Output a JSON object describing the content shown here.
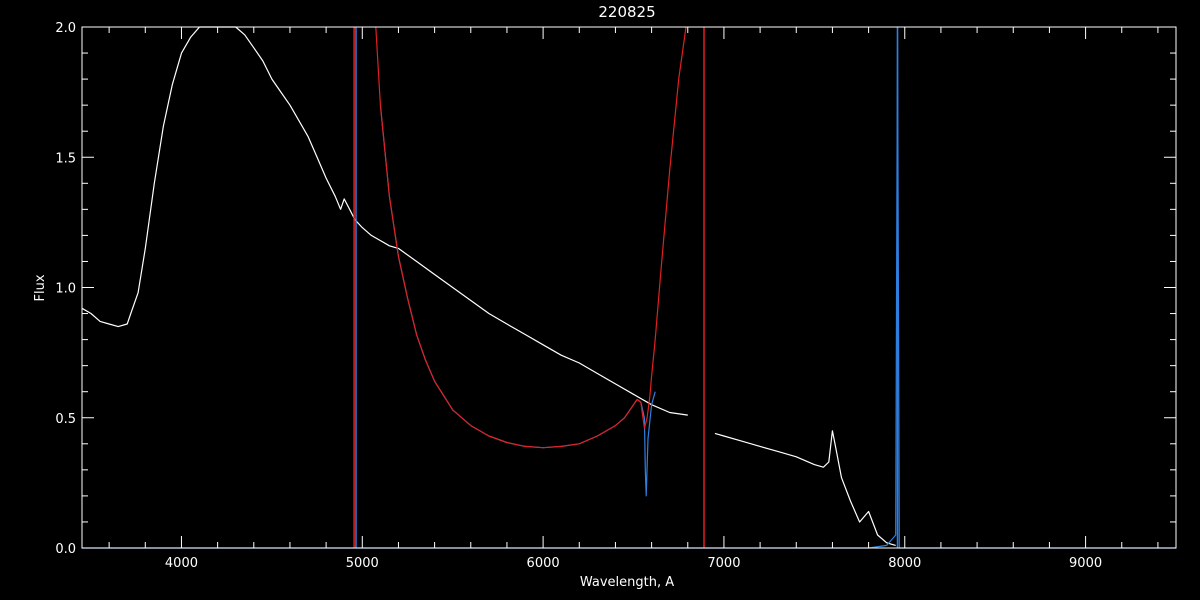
{
  "chart_data": {
    "type": "line",
    "title": "220825",
    "xlabel": "Wavelength, A",
    "ylabel": "Flux",
    "xlim": [
      3450,
      9500
    ],
    "ylim": [
      0.0,
      2.0
    ],
    "xticks": [
      4000,
      5000,
      6000,
      7000,
      8000,
      9000
    ],
    "xtick_labels": [
      "4000",
      "5000",
      "6000",
      "7000",
      "8000",
      "9000"
    ],
    "yticks": [
      0.0,
      0.5,
      1.0,
      1.5,
      2.0
    ],
    "ytick_labels": [
      "0.0",
      "0.5",
      "1.0",
      "1.5",
      "2.0"
    ],
    "background": "#000000",
    "axis_color": "#ffffff",
    "grid": false,
    "series": [
      {
        "color": "#ffffff",
        "style": "solid",
        "x": [
          3450,
          3500,
          3550,
          3600,
          3650,
          3700,
          3720,
          3760,
          3800,
          3850,
          3900,
          3950,
          4000,
          4050,
          4100,
          4150,
          4200,
          4250,
          4300,
          4350,
          4400,
          4450,
          4500,
          4550,
          4600,
          4650,
          4700,
          4750,
          4800,
          4850,
          4880,
          4900,
          4930,
          4960,
          5000,
          5050,
          5100,
          5150,
          5200,
          5300,
          5400,
          5500,
          5600,
          5700,
          5800,
          5900,
          6000,
          6100,
          6200,
          6300,
          6400,
          6500,
          6600,
          6700,
          6800
        ],
        "y": [
          0.92,
          0.9,
          0.87,
          0.86,
          0.85,
          0.86,
          0.9,
          0.98,
          1.15,
          1.4,
          1.62,
          1.78,
          1.9,
          1.96,
          2.0,
          2.0,
          2.0,
          2.0,
          2.0,
          1.97,
          1.92,
          1.87,
          1.8,
          1.75,
          1.7,
          1.64,
          1.58,
          1.5,
          1.42,
          1.35,
          1.3,
          1.34,
          1.3,
          1.26,
          1.23,
          1.2,
          1.18,
          1.16,
          1.15,
          1.1,
          1.05,
          1.0,
          0.95,
          0.9,
          0.86,
          0.82,
          0.78,
          0.74,
          0.71,
          0.67,
          0.63,
          0.59,
          0.55,
          0.52,
          0.51
        ]
      },
      {
        "color": "#ffffff",
        "style": "solid",
        "x": [
          6950,
          7000,
          7100,
          7200,
          7300,
          7400,
          7500,
          7550,
          7580,
          7600,
          7620,
          7650,
          7700,
          7750,
          7800,
          7850,
          7900,
          7950
        ],
        "y": [
          0.44,
          0.43,
          0.41,
          0.39,
          0.37,
          0.35,
          0.32,
          0.31,
          0.33,
          0.45,
          0.38,
          0.27,
          0.18,
          0.1,
          0.14,
          0.05,
          0.02,
          0.01
        ]
      },
      {
        "color": "#2f7fe0",
        "style": "solid",
        "x": [
          5100,
          5150,
          5200,
          5250,
          5300,
          5350,
          5400,
          5500,
          5600,
          5700,
          5800,
          5900,
          6000,
          6100,
          6200,
          6300,
          6400,
          6450,
          6500,
          6520,
          6540,
          6560,
          6565,
          6570,
          6580,
          6600,
          6620
        ],
        "y": [
          1.7,
          1.35,
          1.12,
          0.96,
          0.82,
          0.72,
          0.64,
          0.53,
          0.47,
          0.43,
          0.405,
          0.39,
          0.385,
          0.39,
          0.4,
          0.43,
          0.47,
          0.5,
          0.55,
          0.57,
          0.56,
          0.5,
          0.3,
          0.2,
          0.42,
          0.55,
          0.6
        ]
      },
      {
        "color": "#e02020",
        "style": "solid",
        "x": [
          5075,
          5100,
          5150,
          5200,
          5250,
          5300,
          5350,
          5400,
          5500,
          5600,
          5700,
          5800,
          5900,
          6000,
          6100,
          6200,
          6300,
          6400,
          6450,
          6500,
          6520,
          6540,
          6560,
          6575,
          6590,
          6600,
          6620,
          6650,
          6700,
          6750,
          6790
        ],
        "y": [
          2.0,
          1.7,
          1.35,
          1.12,
          0.96,
          0.82,
          0.72,
          0.64,
          0.53,
          0.47,
          0.43,
          0.405,
          0.39,
          0.385,
          0.39,
          0.4,
          0.43,
          0.47,
          0.5,
          0.55,
          0.57,
          0.56,
          0.46,
          0.5,
          0.58,
          0.66,
          0.8,
          1.05,
          1.45,
          1.8,
          2.0
        ]
      },
      {
        "color": "#2f7fe0",
        "style": "solid",
        "x": [
          3450,
          4000,
          5000,
          6000,
          7000,
          7800,
          7900,
          7950,
          7960,
          7970,
          8000,
          8500,
          9000,
          9500
        ],
        "y": [
          0.0,
          0.0,
          0.0,
          0.0,
          0.0,
          0.0,
          0.01,
          0.05,
          2.0,
          0.0,
          0.0,
          0.0,
          0.0,
          0.0
        ]
      }
    ],
    "vertical_lines": [
      {
        "x": 4955,
        "color": "#e02020"
      },
      {
        "x": 4965,
        "color": "#2f7fe0"
      },
      {
        "x": 6890,
        "color": "#e02020"
      },
      {
        "x": 7960,
        "color": "#2f7fe0"
      }
    ]
  }
}
